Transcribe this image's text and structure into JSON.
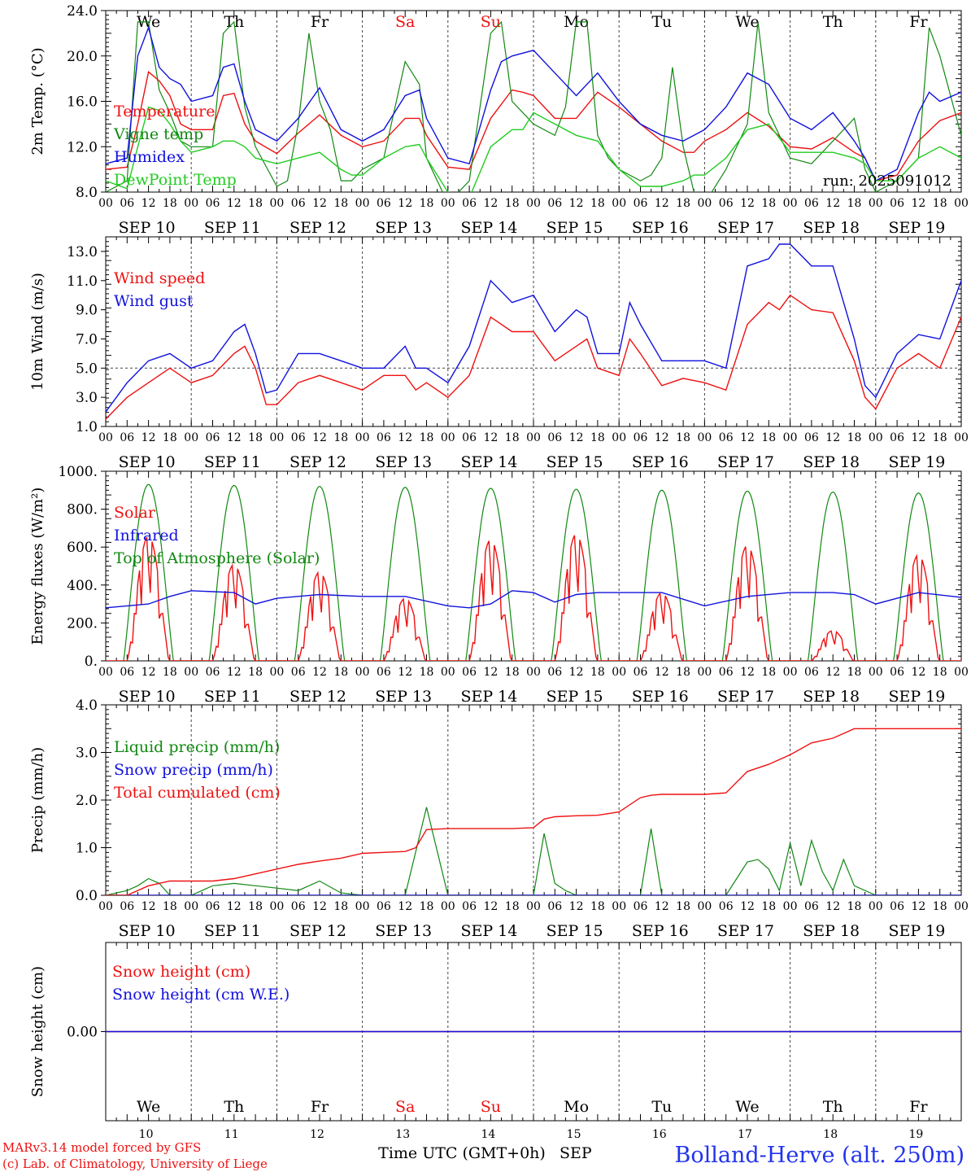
{
  "meteogram": {
    "days": [
      "We",
      "Th",
      "Fr",
      "Sa",
      "Su",
      "Mo",
      "Tu",
      "We",
      "Th",
      "Fr"
    ],
    "weekend_flags": [
      false,
      false,
      false,
      true,
      true,
      false,
      false,
      false,
      false,
      false
    ],
    "hour_labels": [
      "00",
      "06",
      "12",
      "18"
    ],
    "date_labels": [
      "SEP 10",
      "SEP 11",
      "SEP 12",
      "SEP 13",
      "SEP 14",
      "SEP 15",
      "SEP 16",
      "SEP 17",
      "SEP 18",
      "SEP 19"
    ],
    "bottom_day_numbers": [
      "10",
      "11",
      "12",
      "13",
      "14",
      "15",
      "16",
      "17",
      "18",
      "19"
    ],
    "xlabel": "Time UTC (GMT+0h)",
    "month_label": "SEP",
    "run_label": "run: 2025091012",
    "credit_line1": "MARv3.14 model forced by GFS",
    "credit_line2": "(c) Lab. of Climatology, University of Liege",
    "station": "Bolland-Herve (alt. 250m)",
    "colors": {
      "red": "#ee1111",
      "green": "#118811",
      "blue": "#1111dd",
      "lightgreen": "#22cc22",
      "station": "#2233ee"
    }
  },
  "chart_data": [
    {
      "type": "line",
      "ylabel": "2m Temp. (°C)",
      "ylim": [
        8,
        24
      ],
      "yticks": [
        "8.0",
        "12.0",
        "16.0",
        "20.0",
        "24.0"
      ],
      "x_unit": "hours since SEP 10 00 UTC",
      "legend": [
        "Temperature",
        "Vigne temp",
        "Humidex",
        "DewPoint Temp"
      ],
      "series": [
        {
          "name": "Temperature",
          "color": "red",
          "x": [
            0,
            6,
            9,
            12,
            15,
            18,
            21,
            24,
            30,
            33,
            36,
            39,
            42,
            48,
            54,
            60,
            66,
            69,
            72,
            78,
            84,
            88,
            90,
            96,
            102,
            108,
            114,
            117,
            120,
            126,
            132,
            138,
            144,
            150,
            156,
            162,
            165,
            168,
            174,
            180,
            186,
            192,
            198,
            204,
            210,
            213,
            216,
            222,
            228,
            234,
            240
          ],
          "y": [
            10,
            10.2,
            14,
            18.6,
            17.8,
            16.5,
            14,
            13.5,
            13.5,
            16.5,
            16.7,
            14,
            12.5,
            11.4,
            13.2,
            14.8,
            13,
            12.5,
            12,
            12.5,
            14.5,
            14.5,
            13,
            10.2,
            10,
            14.5,
            17,
            16.8,
            16.5,
            14.5,
            14.5,
            16.8,
            15.5,
            14,
            12.5,
            11.5,
            11.5,
            12.5,
            13.5,
            15,
            13.8,
            12,
            11.8,
            12.8,
            11.5,
            11,
            9,
            9.5,
            12.5,
            14.3,
            15
          ]
        },
        {
          "name": "Vigne temp",
          "color": "green",
          "x": [
            0,
            6,
            9,
            12,
            15,
            18,
            21,
            24,
            30,
            33,
            36,
            39,
            42,
            48,
            51,
            54,
            57,
            60,
            63,
            66,
            69,
            72,
            78,
            84,
            88,
            90,
            93,
            96,
            102,
            108,
            111,
            114,
            117,
            120,
            126,
            129,
            132,
            135,
            138,
            141,
            144,
            150,
            153,
            156,
            159,
            162,
            165,
            168,
            174,
            180,
            183,
            186,
            189,
            192,
            198,
            204,
            210,
            213,
            216,
            222,
            228,
            231,
            234,
            240
          ],
          "y": [
            8,
            9,
            23,
            23,
            17,
            15,
            12.5,
            12,
            12,
            22,
            23,
            15.5,
            12,
            8.5,
            9,
            14,
            22,
            16,
            13.5,
            9,
            9,
            10,
            11,
            19.5,
            17.5,
            11,
            9,
            7,
            9,
            22,
            23,
            16,
            15,
            14,
            13,
            15.5,
            23,
            23,
            13,
            11,
            10,
            9,
            9.5,
            11,
            19,
            12,
            8,
            7,
            10,
            14,
            23,
            15,
            13,
            11,
            10.5,
            12.5,
            14.5,
            10,
            8,
            9,
            11,
            22.5,
            20,
            13
          ]
        },
        {
          "name": "Humidex",
          "color": "blue",
          "x": [
            0,
            6,
            9,
            12,
            15,
            18,
            21,
            24,
            30,
            33,
            36,
            39,
            42,
            48,
            54,
            60,
            66,
            69,
            72,
            78,
            84,
            88,
            90,
            96,
            102,
            108,
            111,
            114,
            120,
            126,
            132,
            138,
            144,
            150,
            156,
            162,
            165,
            168,
            174,
            180,
            186,
            192,
            198,
            204,
            210,
            213,
            216,
            222,
            228,
            231,
            234,
            240
          ],
          "y": [
            10.5,
            11,
            20,
            22.5,
            19,
            18,
            17.5,
            16,
            16.5,
            19,
            19.3,
            16,
            13.5,
            12.5,
            14.5,
            17.2,
            13.5,
            13,
            12.5,
            13.5,
            16.5,
            17,
            14.5,
            11,
            10.5,
            17,
            19.5,
            20,
            20.5,
            18.5,
            16.5,
            18.5,
            16,
            14,
            13,
            12.5,
            13,
            13.5,
            15.5,
            18.5,
            17.5,
            14.5,
            13.5,
            15,
            12.5,
            11,
            9,
            10,
            15,
            16.8,
            16,
            16.8
          ]
        },
        {
          "name": "DewPoint Temp",
          "color": "lightgreen",
          "x": [
            0,
            6,
            9,
            12,
            15,
            18,
            21,
            24,
            30,
            33,
            36,
            39,
            42,
            48,
            54,
            60,
            66,
            69,
            72,
            78,
            84,
            88,
            90,
            96,
            102,
            108,
            114,
            117,
            120,
            126,
            132,
            138,
            144,
            150,
            156,
            162,
            165,
            168,
            174,
            180,
            186,
            192,
            198,
            204,
            210,
            213,
            216,
            222,
            228,
            234,
            240
          ],
          "y": [
            9,
            8.3,
            12,
            15.5,
            15.2,
            14,
            12.5,
            11.5,
            12,
            12.5,
            12.5,
            12,
            11,
            10.5,
            11,
            11.5,
            10,
            9.5,
            9.5,
            11,
            12,
            12.2,
            11,
            8,
            7.5,
            12,
            13.5,
            13.5,
            15,
            14,
            13,
            12.5,
            10,
            8.5,
            8.5,
            9,
            9.5,
            9.5,
            11,
            13.5,
            14,
            11.5,
            11.5,
            11.5,
            11,
            10.5,
            9,
            9,
            11,
            12,
            11
          ]
        }
      ]
    },
    {
      "type": "line",
      "ylabel": "10m Wind (m/s)",
      "ylim": [
        1,
        14
      ],
      "yticks": [
        "1.0",
        "3.0",
        "5.0",
        "7.0",
        "9.0",
        "11.0",
        "13.0"
      ],
      "reference_line": 5,
      "legend": [
        "Wind speed",
        "Wind gust"
      ],
      "series": [
        {
          "name": "Wind speed",
          "color": "red",
          "x": [
            0,
            6,
            12,
            18,
            24,
            30,
            36,
            39,
            42,
            45,
            48,
            54,
            60,
            66,
            72,
            78,
            84,
            87,
            90,
            96,
            102,
            108,
            114,
            120,
            126,
            132,
            135,
            138,
            144,
            147,
            150,
            156,
            162,
            168,
            174,
            180,
            186,
            189,
            192,
            198,
            204,
            210,
            213,
            216,
            222,
            228,
            234,
            240
          ],
          "y": [
            1.5,
            3,
            4,
            5,
            4,
            4.5,
            6,
            6.5,
            5,
            2.5,
            2.5,
            4,
            4.5,
            4,
            3.5,
            4.5,
            4.5,
            3.5,
            4,
            3,
            4.5,
            8.5,
            7.5,
            7.5,
            5.5,
            6.5,
            7,
            5,
            4.5,
            7,
            6,
            3.8,
            4.3,
            4,
            3.5,
            8,
            9.5,
            9,
            10,
            9,
            8.8,
            5.5,
            3,
            2.2,
            5,
            6,
            5,
            8.5
          ]
        },
        {
          "name": "Wind gust",
          "color": "blue",
          "x": [
            0,
            6,
            12,
            18,
            24,
            30,
            36,
            39,
            42,
            45,
            48,
            54,
            60,
            66,
            72,
            78,
            84,
            87,
            90,
            96,
            102,
            108,
            114,
            120,
            126,
            132,
            135,
            138,
            144,
            147,
            150,
            156,
            162,
            168,
            174,
            180,
            186,
            189,
            192,
            198,
            204,
            210,
            213,
            216,
            222,
            228,
            234,
            240
          ],
          "y": [
            2,
            4,
            5.5,
            6,
            5,
            5.5,
            7.5,
            8,
            6,
            3.3,
            3.5,
            6,
            6,
            5.5,
            5,
            5,
            6.5,
            5,
            5,
            4,
            6.5,
            11,
            9.5,
            10,
            7.5,
            9,
            8.5,
            6,
            6,
            9.5,
            8,
            5.5,
            5.5,
            5.5,
            5,
            12,
            12.5,
            13.5,
            13.5,
            12,
            12,
            7,
            3.8,
            3,
            6,
            7.3,
            7,
            11
          ]
        }
      ]
    },
    {
      "type": "line",
      "ylabel": "Energy fluxes (W/m²)",
      "ylim": [
        0,
        1000
      ],
      "yticks": [
        "0.",
        "200.",
        "400.",
        "600.",
        "800.",
        "1000."
      ],
      "legend": [
        "Solar",
        "Infrared",
        "Top of Atmosphere (Solar)"
      ],
      "toa_peaks": [
        930,
        925,
        920,
        915,
        910,
        905,
        900,
        895,
        890,
        885
      ],
      "solar_peaks": [
        660,
        510,
        470,
        330,
        640,
        670,
        360,
        610,
        160,
        560
      ],
      "series": [
        {
          "name": "Infrared",
          "color": "blue",
          "x": [
            0,
            12,
            18,
            24,
            36,
            42,
            48,
            60,
            72,
            84,
            96,
            102,
            108,
            114,
            120,
            126,
            132,
            138,
            144,
            156,
            168,
            180,
            192,
            204,
            210,
            216,
            228,
            240
          ],
          "y": [
            280,
            300,
            340,
            370,
            360,
            300,
            330,
            350,
            340,
            340,
            290,
            280,
            300,
            370,
            360,
            310,
            350,
            360,
            360,
            360,
            290,
            340,
            360,
            360,
            350,
            300,
            360,
            335
          ]
        }
      ]
    },
    {
      "type": "line",
      "ylabel": "Precip (mm/h)",
      "ylim": [
        0,
        4
      ],
      "yticks": [
        "0.0",
        "1.0",
        "2.0",
        "3.0",
        "4.0"
      ],
      "legend": [
        "Liquid precip (mm/h)",
        "Snow precip (mm/h)",
        "Total cumulated (cm)"
      ],
      "series": [
        {
          "name": "Liquid precip (mm/h)",
          "color": "green",
          "x": [
            0,
            6,
            9,
            12,
            15,
            18,
            24,
            30,
            36,
            42,
            48,
            54,
            60,
            66,
            72,
            84,
            90,
            96,
            102,
            108,
            114,
            120,
            123,
            126,
            129,
            132,
            135,
            138,
            144,
            150,
            153,
            156,
            162,
            168,
            174,
            180,
            183,
            186,
            189,
            192,
            195,
            198,
            201,
            204,
            207,
            210,
            216,
            240
          ],
          "y": [
            0,
            0.1,
            0.2,
            0.35,
            0.25,
            0,
            0,
            0.2,
            0.25,
            0.2,
            0.15,
            0.1,
            0.3,
            0.05,
            0,
            0,
            1.85,
            0,
            0,
            0,
            0,
            0,
            1.3,
            0.25,
            0.1,
            0,
            0,
            0,
            0,
            0,
            1.4,
            0,
            0,
            0,
            0,
            0.7,
            0.75,
            0.55,
            0.1,
            1.1,
            0.2,
            1.15,
            0.5,
            0.1,
            0.75,
            0.2,
            0,
            0
          ]
        },
        {
          "name": "Snow precip (mm/h)",
          "color": "blue",
          "x": [
            0,
            240
          ],
          "y": [
            0,
            0
          ]
        },
        {
          "name": "Total cumulated (cm)",
          "color": "red",
          "x": [
            0,
            6,
            12,
            18,
            24,
            30,
            36,
            42,
            48,
            54,
            60,
            66,
            72,
            78,
            84,
            87,
            90,
            96,
            102,
            108,
            114,
            120,
            123,
            126,
            132,
            138,
            144,
            150,
            153,
            156,
            162,
            168,
            174,
            180,
            186,
            192,
            198,
            204,
            210,
            216,
            222,
            228,
            234,
            240
          ],
          "y": [
            0,
            0,
            0.2,
            0.3,
            0.3,
            0.3,
            0.35,
            0.45,
            0.55,
            0.65,
            0.72,
            0.78,
            0.88,
            0.9,
            0.92,
            1.0,
            1.38,
            1.4,
            1.4,
            1.4,
            1.4,
            1.42,
            1.6,
            1.65,
            1.67,
            1.68,
            1.75,
            2.05,
            2.1,
            2.12,
            2.12,
            2.12,
            2.15,
            2.6,
            2.75,
            2.95,
            3.2,
            3.3,
            3.5,
            3.5,
            3.5,
            3.5,
            3.5,
            3.5
          ]
        }
      ]
    },
    {
      "type": "line",
      "ylabel": "Snow height (cm)",
      "ylim": [
        -1,
        1
      ],
      "yticks": [
        "0.00"
      ],
      "legend": [
        "Snow height (cm)",
        "Snow height (cm W.E.)"
      ],
      "series": [
        {
          "name": "Snow height (cm)",
          "color": "red",
          "x": [
            0,
            240
          ],
          "y": [
            0,
            0
          ]
        },
        {
          "name": "Snow height (cm W.E.)",
          "color": "blue",
          "x": [
            0,
            240
          ],
          "y": [
            0,
            0
          ]
        }
      ]
    }
  ]
}
